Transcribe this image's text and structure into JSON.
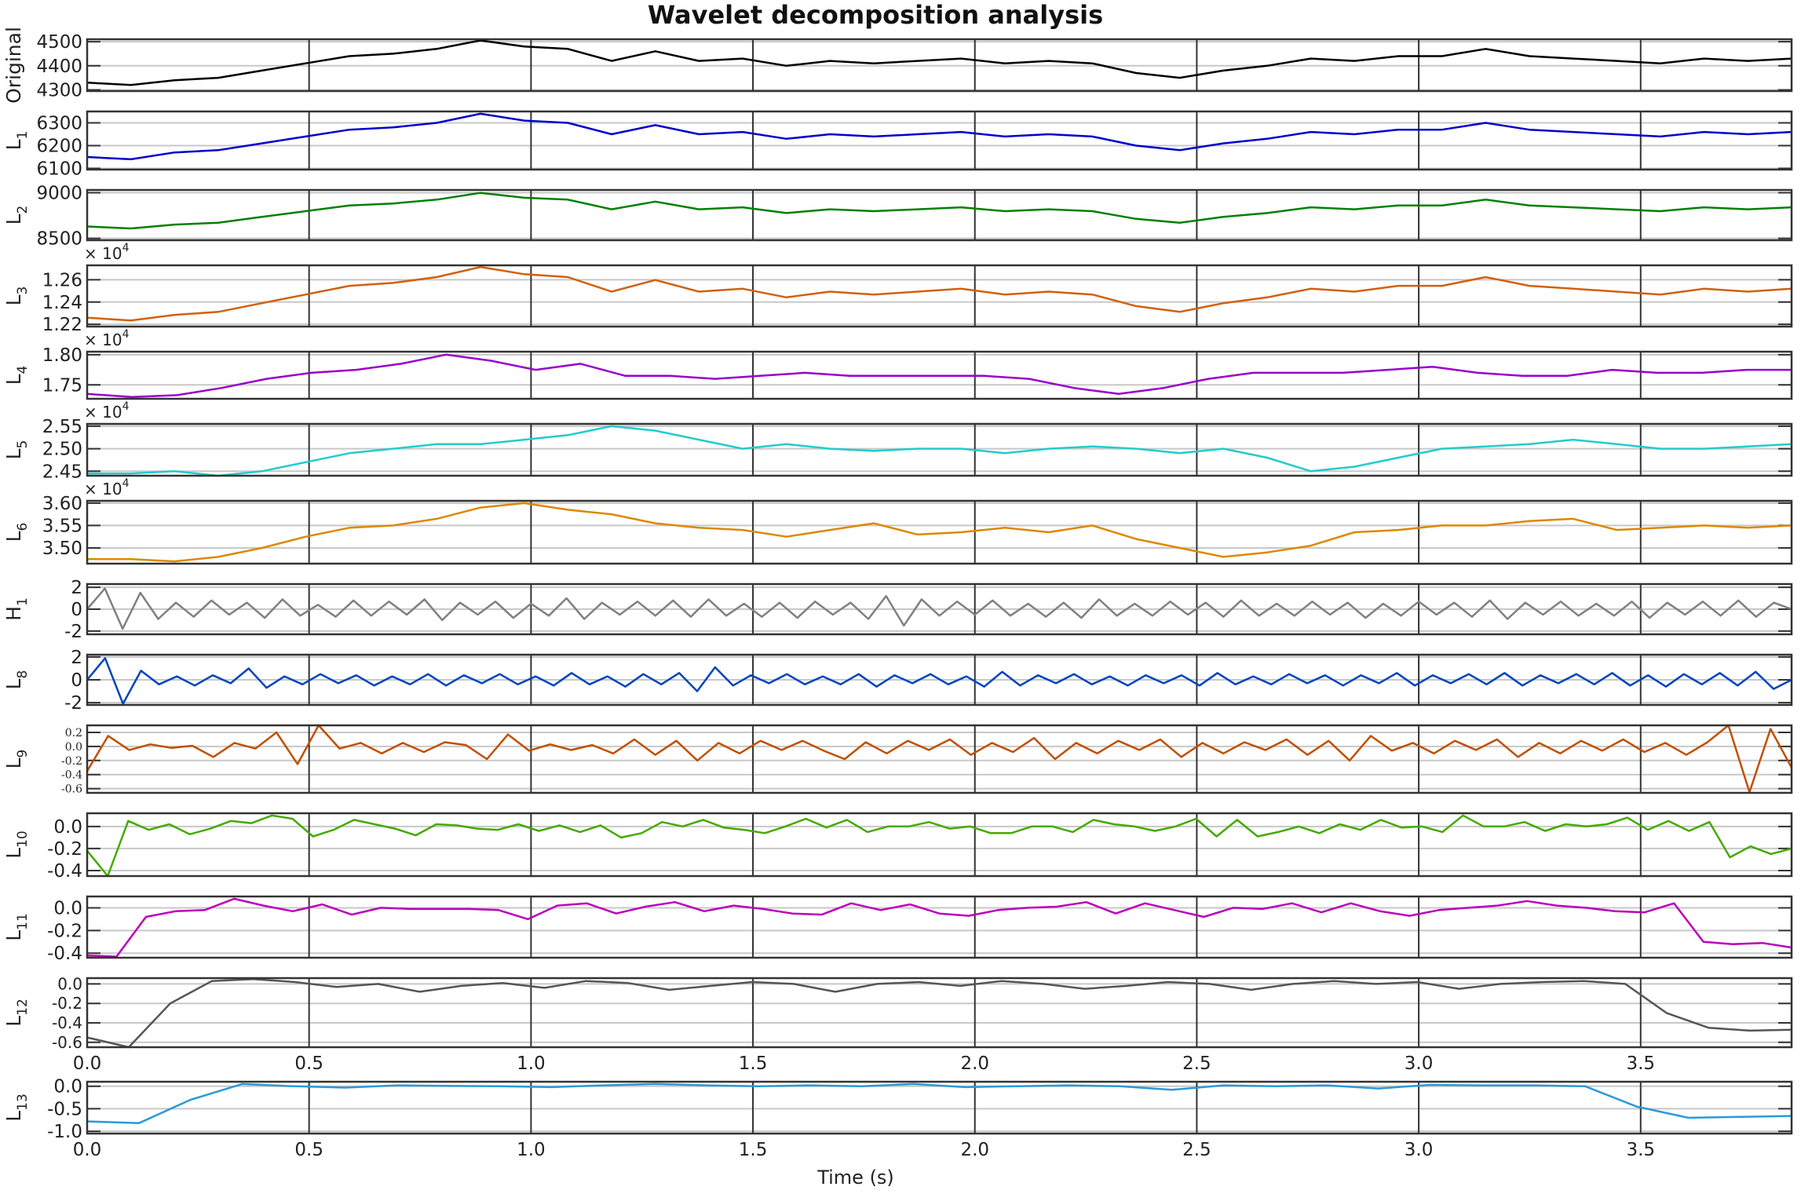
{
  "chart_data": {
    "type": "line",
    "title": "Wavelet decomposition analysis",
    "xlabel": "Time (s)",
    "xlim": [
      0,
      3.84
    ],
    "xticks": [
      "0.0",
      "0.5",
      "1.0",
      "1.5",
      "2.0",
      "2.5",
      "3.0",
      "3.5"
    ],
    "xtick_values": [
      0,
      0.5,
      1.0,
      1.5,
      2.0,
      2.5,
      3.0,
      3.5
    ],
    "grid": true,
    "panels": [
      {
        "name": "Original",
        "label": "Original",
        "sub": "",
        "color": "#000000",
        "ylim": [
          4295,
          4510
        ],
        "exponent": "",
        "ticks": [
          4300,
          4400,
          4500
        ],
        "tick_labels": [
          "4300",
          "4400",
          "4500"
        ],
        "values": [
          4330,
          4320,
          4340,
          4350,
          4380,
          4410,
          4440,
          4450,
          4470,
          4505,
          4480,
          4470,
          4420,
          4460,
          4420,
          4430,
          4400,
          4420,
          4410,
          4420,
          4430,
          4410,
          4420,
          4410,
          4370,
          4350,
          4380,
          4400,
          4430,
          4420,
          4440,
          4440,
          4470,
          4440,
          4430,
          4420,
          4410,
          4430,
          4420,
          4430
        ]
      },
      {
        "name": "L1",
        "label": "L",
        "sub": "1",
        "color": "#0000cc",
        "ylim": [
          6095,
          6350
        ],
        "exponent": "",
        "ticks": [
          6100,
          6200,
          6300
        ],
        "tick_labels": [
          "6100",
          "6200",
          "6300"
        ],
        "values": [
          6150,
          6140,
          6170,
          6180,
          6210,
          6240,
          6270,
          6280,
          6300,
          6340,
          6310,
          6300,
          6250,
          6290,
          6250,
          6260,
          6230,
          6250,
          6240,
          6250,
          6260,
          6240,
          6250,
          6240,
          6200,
          6180,
          6210,
          6230,
          6260,
          6250,
          6270,
          6270,
          6300,
          6270,
          6260,
          6250,
          6240,
          6260,
          6250,
          6260
        ]
      },
      {
        "name": "L2",
        "label": "L",
        "sub": "2",
        "color": "#008000",
        "ylim": [
          8480,
          9030
        ],
        "exponent": "",
        "ticks": [
          8500,
          9000
        ],
        "tick_labels": [
          "8500",
          "9000"
        ],
        "values": [
          8630,
          8609,
          8651,
          8672,
          8735,
          8798,
          8861,
          8882,
          8924,
          8998,
          8945,
          8924,
          8819,
          8903,
          8819,
          8840,
          8777,
          8819,
          8798,
          8819,
          8840,
          8798,
          8819,
          8798,
          8714,
          8672,
          8735,
          8777,
          8840,
          8819,
          8861,
          8861,
          8924,
          8861,
          8840,
          8819,
          8798,
          8840,
          8819,
          8840
        ]
      },
      {
        "name": "L3",
        "label": "L",
        "sub": "3",
        "color": "#d2600c",
        "ylim": [
          1.218,
          1.273
        ],
        "exponent": "4",
        "ticks": [
          1.22,
          1.24,
          1.26
        ],
        "tick_labels": [
          "1.22",
          "1.24",
          "1.26"
        ],
        "values": [
          1.226,
          1.2235,
          1.2285,
          1.2312,
          1.239,
          1.2468,
          1.2546,
          1.2572,
          1.2624,
          1.2715,
          1.265,
          1.2624,
          1.2494,
          1.2598,
          1.2494,
          1.252,
          1.2442,
          1.2494,
          1.2468,
          1.2494,
          1.252,
          1.2468,
          1.2494,
          1.2468,
          1.2364,
          1.2312,
          1.239,
          1.2442,
          1.252,
          1.2494,
          1.2546,
          1.2546,
          1.2624,
          1.2546,
          1.252,
          1.2494,
          1.2468,
          1.252,
          1.2494,
          1.252
        ]
      },
      {
        "name": "L4",
        "label": "L",
        "sub": "4",
        "color": "#9900cc",
        "ylim": [
          1.727,
          1.805
        ],
        "exponent": "4",
        "ticks": [
          1.75,
          1.8
        ],
        "tick_labels": [
          "1.75",
          "1.80"
        ],
        "values": [
          1.735,
          1.73,
          1.733,
          1.745,
          1.76,
          1.77,
          1.775,
          1.785,
          1.8,
          1.79,
          1.775,
          1.785,
          1.765,
          1.765,
          1.76,
          1.765,
          1.77,
          1.765,
          1.765,
          1.765,
          1.765,
          1.76,
          1.745,
          1.735,
          1.745,
          1.76,
          1.77,
          1.77,
          1.77,
          1.775,
          1.78,
          1.77,
          1.765,
          1.765,
          1.775,
          1.77,
          1.77,
          1.775,
          1.775
        ]
      },
      {
        "name": "L5",
        "label": "L",
        "sub": "5",
        "color": "#22cccc",
        "ylim": [
          2.44,
          2.555
        ],
        "exponent": "4",
        "ticks": [
          2.45,
          2.5,
          2.55
        ],
        "tick_labels": [
          "2.45",
          "2.50",
          "2.55"
        ],
        "values": [
          2.445,
          2.445,
          2.45,
          2.44,
          2.45,
          2.47,
          2.49,
          2.5,
          2.51,
          2.51,
          2.52,
          2.53,
          2.55,
          2.54,
          2.52,
          2.5,
          2.51,
          2.5,
          2.495,
          2.5,
          2.5,
          2.49,
          2.5,
          2.505,
          2.5,
          2.49,
          2.5,
          2.48,
          2.45,
          2.46,
          2.48,
          2.5,
          2.505,
          2.51,
          2.52,
          2.51,
          2.5,
          2.5,
          2.505,
          2.51
        ]
      },
      {
        "name": "L6",
        "label": "L",
        "sub": "6",
        "color": "#dd8800",
        "ylim": [
          3.465,
          3.605
        ],
        "exponent": "4",
        "ticks": [
          3.5,
          3.55,
          3.6
        ],
        "tick_labels": [
          "3.50",
          "3.55",
          "3.60"
        ],
        "values": [
          3.475,
          3.475,
          3.47,
          3.48,
          3.5,
          3.525,
          3.545,
          3.55,
          3.565,
          3.59,
          3.6,
          3.585,
          3.575,
          3.555,
          3.545,
          3.54,
          3.525,
          3.54,
          3.555,
          3.53,
          3.535,
          3.545,
          3.535,
          3.55,
          3.52,
          3.5,
          3.48,
          3.49,
          3.505,
          3.535,
          3.54,
          3.55,
          3.55,
          3.56,
          3.565,
          3.54,
          3.545,
          3.55,
          3.545,
          3.55
        ]
      },
      {
        "name": "H1",
        "label": "H",
        "sub": "1",
        "color": "#808080",
        "ylim": [
          -2.3,
          2.3
        ],
        "exponent": "",
        "ticks": [
          -2,
          0,
          2
        ],
        "tick_labels": [
          "-2",
          "0",
          "2"
        ],
        "values": [
          0,
          1.9,
          -1.8,
          1.5,
          -0.9,
          0.6,
          -0.7,
          0.8,
          -0.5,
          0.6,
          -0.8,
          0.9,
          -0.6,
          0.4,
          -0.7,
          0.8,
          -0.6,
          0.7,
          -0.5,
          0.9,
          -1.0,
          0.6,
          -0.5,
          0.7,
          -0.8,
          0.5,
          -0.6,
          1.0,
          -0.9,
          0.6,
          -0.5,
          0.7,
          -0.6,
          0.8,
          -0.7,
          0.9,
          -0.6,
          0.5,
          -0.7,
          0.6,
          -0.8,
          0.7,
          -0.5,
          0.6,
          -0.9,
          1.2,
          -1.5,
          0.9,
          -0.6,
          0.7,
          -0.5,
          0.8,
          -0.6,
          0.5,
          -0.7,
          0.6,
          -0.8,
          0.9,
          -0.6,
          0.5,
          -0.6,
          0.7,
          -0.5,
          0.6,
          -0.7,
          0.8,
          -0.6,
          0.5,
          -0.6,
          0.7,
          -0.5,
          0.6,
          -0.8,
          0.5,
          -0.6,
          0.7,
          -0.5,
          0.6,
          -0.7,
          0.8,
          -0.9,
          0.6,
          -0.5,
          0.7,
          -0.6,
          0.5,
          -0.6,
          0.7,
          -0.8,
          0.6,
          -0.5,
          0.7,
          -0.6,
          0.8,
          -0.7,
          0.6,
          0
        ]
      },
      {
        "name": "L8",
        "label": "L",
        "sub": "8",
        "color": "#0044bb",
        "ylim": [
          -2.2,
          2.2
        ],
        "exponent": "",
        "ticks": [
          -2,
          0,
          2
        ],
        "tick_labels": [
          "-2",
          "0",
          "2"
        ],
        "values": [
          0,
          1.9,
          -2.1,
          0.8,
          -0.4,
          0.3,
          -0.5,
          0.4,
          -0.3,
          1.0,
          -0.7,
          0.3,
          -0.4,
          0.5,
          -0.3,
          0.4,
          -0.5,
          0.3,
          -0.4,
          0.5,
          -0.5,
          0.4,
          -0.3,
          0.5,
          -0.4,
          0.3,
          -0.5,
          0.6,
          -0.4,
          0.3,
          -0.6,
          0.5,
          -0.4,
          0.6,
          -1.0,
          1.1,
          -0.5,
          0.4,
          -0.3,
          0.5,
          -0.4,
          0.3,
          -0.4,
          0.5,
          -0.6,
          0.4,
          -0.3,
          0.5,
          -0.4,
          0.3,
          -0.6,
          0.7,
          -0.5,
          0.4,
          -0.3,
          0.5,
          -0.4,
          0.3,
          -0.5,
          0.4,
          -0.3,
          0.4,
          -0.5,
          0.6,
          -0.4,
          0.3,
          -0.4,
          0.5,
          -0.3,
          0.4,
          -0.5,
          0.4,
          -0.3,
          0.6,
          -0.5,
          0.4,
          -0.3,
          0.5,
          -0.4,
          0.6,
          -0.5,
          0.4,
          -0.3,
          0.5,
          -0.4,
          0.6,
          -0.5,
          0.4,
          -0.6,
          0.5,
          -0.4,
          0.6,
          -0.5,
          0.7,
          -0.8,
          0
        ]
      },
      {
        "name": "L9",
        "label": "L",
        "sub": "9",
        "color": "#c05000",
        "ylim": [
          -0.66,
          0.3
        ],
        "exponent": "",
        "ticks": [
          -0.6,
          -0.4,
          -0.2,
          0.0,
          0.2
        ],
        "tick_labels": [
          "-0.6",
          "-0.4",
          "-0.2",
          "0.0",
          "0.2"
        ],
        "values": [
          -0.35,
          0.15,
          -0.05,
          0.03,
          -0.02,
          0.01,
          -0.15,
          0.05,
          -0.03,
          0.2,
          -0.25,
          0.3,
          -0.03,
          0.05,
          -0.1,
          0.05,
          -0.08,
          0.06,
          0.02,
          -0.18,
          0.17,
          -0.06,
          0.03,
          -0.05,
          0.02,
          -0.1,
          0.1,
          -0.12,
          0.08,
          -0.2,
          0.05,
          -0.1,
          0.08,
          -0.05,
          0.08,
          -0.06,
          -0.18,
          0.06,
          -0.1,
          0.08,
          -0.05,
          0.1,
          -0.12,
          0.05,
          -0.08,
          0.12,
          -0.18,
          0.05,
          -0.1,
          0.08,
          -0.05,
          0.1,
          -0.15,
          0.05,
          -0.1,
          0.06,
          -0.05,
          0.1,
          -0.12,
          0.08,
          -0.2,
          0.15,
          -0.06,
          0.05,
          -0.1,
          0.08,
          -0.05,
          0.1,
          -0.15,
          0.05,
          -0.1,
          0.08,
          -0.06,
          0.1,
          -0.08,
          0.05,
          -0.12,
          0.06,
          0.3,
          -0.65,
          0.25,
          -0.3
        ]
      },
      {
        "name": "L10",
        "label": "L",
        "sub": "10",
        "color": "#44aa00",
        "ylim": [
          -0.45,
          0.12
        ],
        "exponent": "",
        "ticks": [
          -0.4,
          -0.2,
          0.0
        ],
        "tick_labels": [
          "-0.4",
          "-0.2",
          "0.0"
        ],
        "values": [
          -0.22,
          -0.45,
          0.05,
          -0.03,
          0.02,
          -0.07,
          -0.02,
          0.05,
          0.03,
          0.1,
          0.07,
          -0.09,
          -0.03,
          0.06,
          0.02,
          -0.02,
          -0.08,
          0.02,
          0.01,
          -0.02,
          -0.03,
          0.02,
          -0.04,
          0.01,
          -0.05,
          0.01,
          -0.1,
          -0.06,
          0.04,
          0.0,
          0.06,
          -0.01,
          -0.03,
          -0.06,
          0.0,
          0.07,
          -0.01,
          0.06,
          -0.05,
          0.0,
          0.0,
          0.04,
          -0.02,
          0.0,
          -0.06,
          -0.06,
          0.0,
          0.0,
          -0.05,
          0.06,
          0.02,
          0.0,
          -0.04,
          0.0,
          0.07,
          -0.09,
          0.06,
          -0.09,
          -0.05,
          0.0,
          -0.06,
          0.02,
          -0.03,
          0.06,
          -0.01,
          0.0,
          -0.05,
          0.1,
          0.0,
          0.0,
          0.04,
          -0.04,
          0.02,
          0.0,
          0.02,
          0.08,
          -0.03,
          0.05,
          -0.04,
          0.04,
          -0.28,
          -0.18,
          -0.25,
          -0.2
        ]
      },
      {
        "name": "L11",
        "label": "L",
        "sub": "11",
        "color": "#bb00bb",
        "ylim": [
          -0.44,
          0.1
        ],
        "exponent": "",
        "ticks": [
          -0.4,
          -0.2,
          0.0
        ],
        "tick_labels": [
          "-0.4",
          "-0.2",
          "0.0"
        ],
        "values": [
          -0.42,
          -0.43,
          -0.08,
          -0.03,
          -0.02,
          0.08,
          0.02,
          -0.03,
          0.03,
          -0.06,
          0.0,
          -0.01,
          -0.01,
          -0.01,
          -0.02,
          -0.1,
          0.02,
          0.04,
          -0.05,
          0.01,
          0.05,
          -0.03,
          0.02,
          -0.01,
          -0.05,
          -0.06,
          0.04,
          -0.02,
          0.03,
          -0.05,
          -0.07,
          -0.02,
          0.0,
          0.01,
          0.05,
          -0.05,
          0.04,
          -0.02,
          -0.08,
          0.0,
          -0.01,
          0.04,
          -0.04,
          0.04,
          -0.03,
          -0.07,
          -0.02,
          0.0,
          0.02,
          0.06,
          0.02,
          0.0,
          -0.03,
          -0.04,
          0.04,
          -0.3,
          -0.32,
          -0.31,
          -0.35
        ]
      },
      {
        "name": "L12",
        "label": "L",
        "sub": "12",
        "color": "#555555",
        "ylim": [
          -0.65,
          0.06
        ],
        "exponent": "",
        "ticks": [
          -0.6,
          -0.4,
          -0.2,
          0.0
        ],
        "tick_labels": [
          "-0.6",
          "-0.4",
          "-0.2",
          "0.0"
        ],
        "values": [
          -0.55,
          -0.65,
          -0.2,
          0.03,
          0.05,
          0.02,
          -0.03,
          0.0,
          -0.08,
          -0.02,
          0.01,
          -0.04,
          0.03,
          0.01,
          -0.06,
          -0.02,
          0.02,
          0.0,
          -0.08,
          0.0,
          0.02,
          -0.02,
          0.03,
          0.0,
          -0.05,
          -0.02,
          0.02,
          0.0,
          -0.06,
          0.0,
          0.03,
          0.0,
          0.02,
          -0.05,
          0.0,
          0.02,
          0.03,
          0.0,
          -0.3,
          -0.45,
          -0.48,
          -0.47
        ]
      },
      {
        "name": "L13",
        "label": "L",
        "sub": "13",
        "color": "#2a9ad8",
        "ylim": [
          -1.05,
          0.1
        ],
        "exponent": "",
        "ticks": [
          -1.0,
          -0.5,
          0.0
        ],
        "tick_labels": [
          "-1.0",
          "-0.5",
          "0.0"
        ],
        "values": [
          -0.78,
          -0.82,
          -0.3,
          0.05,
          0.0,
          -0.03,
          0.02,
          0.01,
          0.0,
          -0.02,
          0.02,
          0.05,
          0.02,
          0.0,
          0.02,
          0.0,
          0.05,
          -0.02,
          0.0,
          0.02,
          0.0,
          -0.08,
          0.02,
          0.0,
          0.02,
          -0.05,
          0.03,
          0.02,
          0.02,
          0.0,
          -0.45,
          -0.7,
          -0.68,
          -0.66
        ]
      }
    ]
  }
}
